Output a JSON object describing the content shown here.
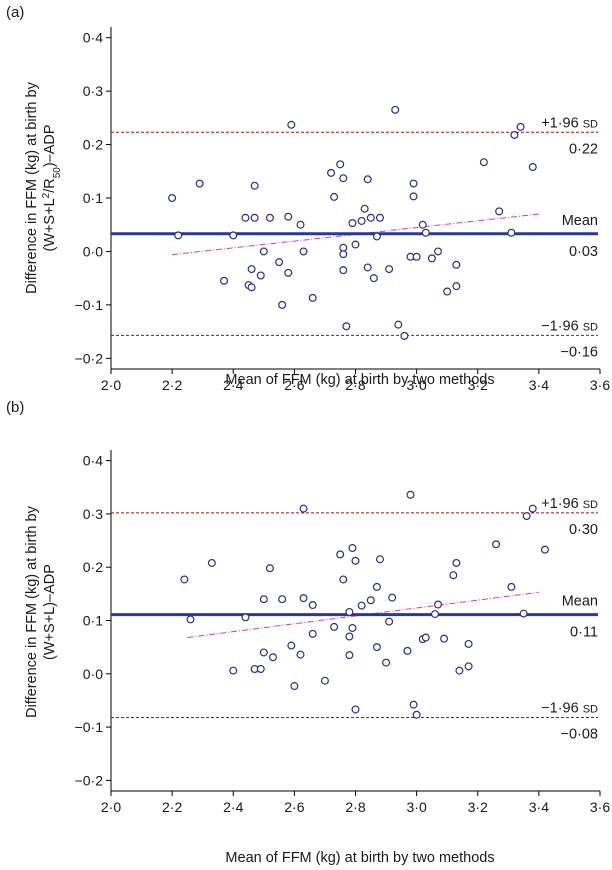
{
  "chart_data": [
    {
      "panel_label": "(a)",
      "type": "scatter",
      "xlabel": "Mean of FFM (kg) at birth by two methods",
      "ylabel_line1": "Difference in FFM (kg) at birth by",
      "ylabel_line2_pre": "(W+S+L",
      "ylabel_line2_sup": "2",
      "ylabel_line2_mid": "/R",
      "ylabel_line2_sub": "50",
      "ylabel_line2_post": ")–ADP",
      "xlim": [
        2.0,
        3.6
      ],
      "ylim": [
        -0.22,
        0.42
      ],
      "x_ticks": [
        {
          "v": 2.0,
          "l": "2·0"
        },
        {
          "v": 2.2,
          "l": "2·2"
        },
        {
          "v": 2.4,
          "l": "2·4"
        },
        {
          "v": 2.6,
          "l": "2·6"
        },
        {
          "v": 2.8,
          "l": "2·8"
        },
        {
          "v": 3.0,
          "l": "3·0"
        },
        {
          "v": 3.2,
          "l": "3·2"
        },
        {
          "v": 3.4,
          "l": "3·4"
        },
        {
          "v": 3.6,
          "l": "3·6"
        }
      ],
      "y_ticks": [
        {
          "v": -0.2,
          "l": "−0·2"
        },
        {
          "v": -0.1,
          "l": "−0·1"
        },
        {
          "v": 0.0,
          "l": "0·0"
        },
        {
          "v": 0.1,
          "l": "0·1"
        },
        {
          "v": 0.2,
          "l": "0·2"
        },
        {
          "v": 0.3,
          "l": "0·3"
        },
        {
          "v": 0.4,
          "l": "0·4"
        }
      ],
      "mean_line": {
        "value": 0.033,
        "label": "Mean",
        "value_label": "0·03"
      },
      "upper_limit": {
        "value": 0.223,
        "label_prefix": "+1·96",
        "label_unit": "SD",
        "value_label": "0·22"
      },
      "lower_limit": {
        "value": -0.157,
        "label_prefix": "−1·96",
        "label_unit": "SD",
        "value_label": "−0·16"
      },
      "trend_line": [
        [
          2.2,
          -0.006
        ],
        [
          3.4,
          0.07
        ]
      ],
      "points": [
        [
          2.2,
          0.1
        ],
        [
          2.22,
          0.03
        ],
        [
          2.29,
          0.127
        ],
        [
          2.37,
          -0.055
        ],
        [
          2.4,
          0.03
        ],
        [
          2.44,
          0.063
        ],
        [
          2.45,
          -0.063
        ],
        [
          2.46,
          -0.033
        ],
        [
          2.46,
          -0.067
        ],
        [
          2.47,
          0.063
        ],
        [
          2.47,
          0.123
        ],
        [
          2.49,
          -0.045
        ],
        [
          2.5,
          0.0
        ],
        [
          2.52,
          0.063
        ],
        [
          2.55,
          -0.02
        ],
        [
          2.56,
          -0.1
        ],
        [
          2.58,
          -0.04
        ],
        [
          2.58,
          0.065
        ],
        [
          2.59,
          0.237
        ],
        [
          2.62,
          0.05
        ],
        [
          2.63,
          0.0
        ],
        [
          2.66,
          -0.087
        ],
        [
          2.72,
          0.147
        ],
        [
          2.73,
          0.102
        ],
        [
          2.75,
          0.163
        ],
        [
          2.76,
          0.137
        ],
        [
          2.76,
          -0.035
        ],
        [
          2.76,
          -0.005
        ],
        [
          2.76,
          0.007
        ],
        [
          2.77,
          -0.14
        ],
        [
          2.79,
          0.053
        ],
        [
          2.8,
          0.013
        ],
        [
          2.82,
          0.057
        ],
        [
          2.83,
          0.08
        ],
        [
          2.84,
          0.135
        ],
        [
          2.84,
          -0.03
        ],
        [
          2.85,
          0.063
        ],
        [
          2.86,
          -0.05
        ],
        [
          2.87,
          0.028
        ],
        [
          2.88,
          0.063
        ],
        [
          2.91,
          -0.033
        ],
        [
          2.93,
          0.265
        ],
        [
          2.94,
          -0.137
        ],
        [
          2.96,
          -0.158
        ],
        [
          2.98,
          -0.01
        ],
        [
          2.99,
          0.103
        ],
        [
          2.99,
          0.127
        ],
        [
          3.0,
          -0.01
        ],
        [
          3.02,
          0.05
        ],
        [
          3.03,
          0.035
        ],
        [
          3.05,
          -0.013
        ],
        [
          3.07,
          0.0
        ],
        [
          3.1,
          -0.075
        ],
        [
          3.13,
          -0.065
        ],
        [
          3.13,
          -0.025
        ],
        [
          3.22,
          0.167
        ],
        [
          3.27,
          0.075
        ],
        [
          3.31,
          0.035
        ],
        [
          3.32,
          0.218
        ],
        [
          3.34,
          0.233
        ],
        [
          3.38,
          0.158
        ]
      ]
    },
    {
      "panel_label": "(b)",
      "type": "scatter",
      "xlabel": "Mean of FFM (kg) at birth by two methods",
      "ylabel_line1": "Difference in FFM (kg) at birth by",
      "ylabel_line2_pre": "(W+S+L)–ADP",
      "ylabel_line2_sup": "",
      "ylabel_line2_mid": "",
      "ylabel_line2_sub": "",
      "ylabel_line2_post": "",
      "xlim": [
        2.0,
        3.6
      ],
      "ylim": [
        -0.22,
        0.42
      ],
      "x_ticks": [
        {
          "v": 2.0,
          "l": "2·0"
        },
        {
          "v": 2.2,
          "l": "2·2"
        },
        {
          "v": 2.4,
          "l": "2·4"
        },
        {
          "v": 2.6,
          "l": "2·6"
        },
        {
          "v": 2.8,
          "l": "2·8"
        },
        {
          "v": 3.0,
          "l": "3·0"
        },
        {
          "v": 3.2,
          "l": "3·2"
        },
        {
          "v": 3.4,
          "l": "3·4"
        },
        {
          "v": 3.6,
          "l": "3·6"
        }
      ],
      "y_ticks": [
        {
          "v": -0.2,
          "l": "−0·2"
        },
        {
          "v": -0.1,
          "l": "−0·1"
        },
        {
          "v": 0.0,
          "l": "0·0"
        },
        {
          "v": 0.1,
          "l": "0·1"
        },
        {
          "v": 0.2,
          "l": "0·2"
        },
        {
          "v": 0.3,
          "l": "0·3"
        },
        {
          "v": 0.4,
          "l": "0·4"
        }
      ],
      "mean_line": {
        "value": 0.111,
        "label": "Mean",
        "value_label": "0·11"
      },
      "upper_limit": {
        "value": 0.302,
        "label_prefix": "+1·96",
        "label_unit": "SD",
        "value_label": "0·30"
      },
      "lower_limit": {
        "value": -0.082,
        "label_prefix": "−1·96",
        "label_unit": "SD",
        "value_label": "−0·08"
      },
      "trend_line": [
        [
          2.25,
          0.068
        ],
        [
          3.4,
          0.153
        ]
      ],
      "points": [
        [
          2.24,
          0.177
        ],
        [
          2.26,
          0.102
        ],
        [
          2.33,
          0.208
        ],
        [
          2.4,
          0.006
        ],
        [
          2.44,
          0.106
        ],
        [
          2.47,
          0.009
        ],
        [
          2.49,
          0.009
        ],
        [
          2.5,
          0.14
        ],
        [
          2.5,
          0.04
        ],
        [
          2.52,
          0.198
        ],
        [
          2.53,
          0.031
        ],
        [
          2.56,
          0.14
        ],
        [
          2.59,
          0.053
        ],
        [
          2.6,
          -0.023
        ],
        [
          2.62,
          0.036
        ],
        [
          2.63,
          0.142
        ],
        [
          2.63,
          0.31
        ],
        [
          2.66,
          0.129
        ],
        [
          2.66,
          0.075
        ],
        [
          2.7,
          -0.013
        ],
        [
          2.73,
          0.088
        ],
        [
          2.75,
          0.224
        ],
        [
          2.76,
          0.177
        ],
        [
          2.78,
          0.035
        ],
        [
          2.78,
          0.07
        ],
        [
          2.78,
          0.116
        ],
        [
          2.79,
          0.086
        ],
        [
          2.79,
          0.236
        ],
        [
          2.8,
          0.212
        ],
        [
          2.8,
          -0.067
        ],
        [
          2.82,
          0.128
        ],
        [
          2.85,
          0.138
        ],
        [
          2.87,
          0.163
        ],
        [
          2.87,
          0.05
        ],
        [
          2.88,
          0.215
        ],
        [
          2.9,
          0.021
        ],
        [
          2.91,
          0.098
        ],
        [
          2.92,
          0.143
        ],
        [
          2.97,
          0.043
        ],
        [
          2.98,
          0.336
        ],
        [
          2.99,
          -0.058
        ],
        [
          3.0,
          -0.077
        ],
        [
          3.02,
          0.065
        ],
        [
          3.03,
          0.068
        ],
        [
          3.06,
          0.112
        ],
        [
          3.07,
          0.13
        ],
        [
          3.09,
          0.066
        ],
        [
          3.12,
          0.185
        ],
        [
          3.13,
          0.208
        ],
        [
          3.14,
          0.006
        ],
        [
          3.17,
          0.056
        ],
        [
          3.17,
          0.014
        ],
        [
          3.26,
          0.243
        ],
        [
          3.31,
          0.163
        ],
        [
          3.35,
          0.113
        ],
        [
          3.36,
          0.296
        ],
        [
          3.38,
          0.31
        ],
        [
          3.42,
          0.233
        ]
      ]
    }
  ]
}
